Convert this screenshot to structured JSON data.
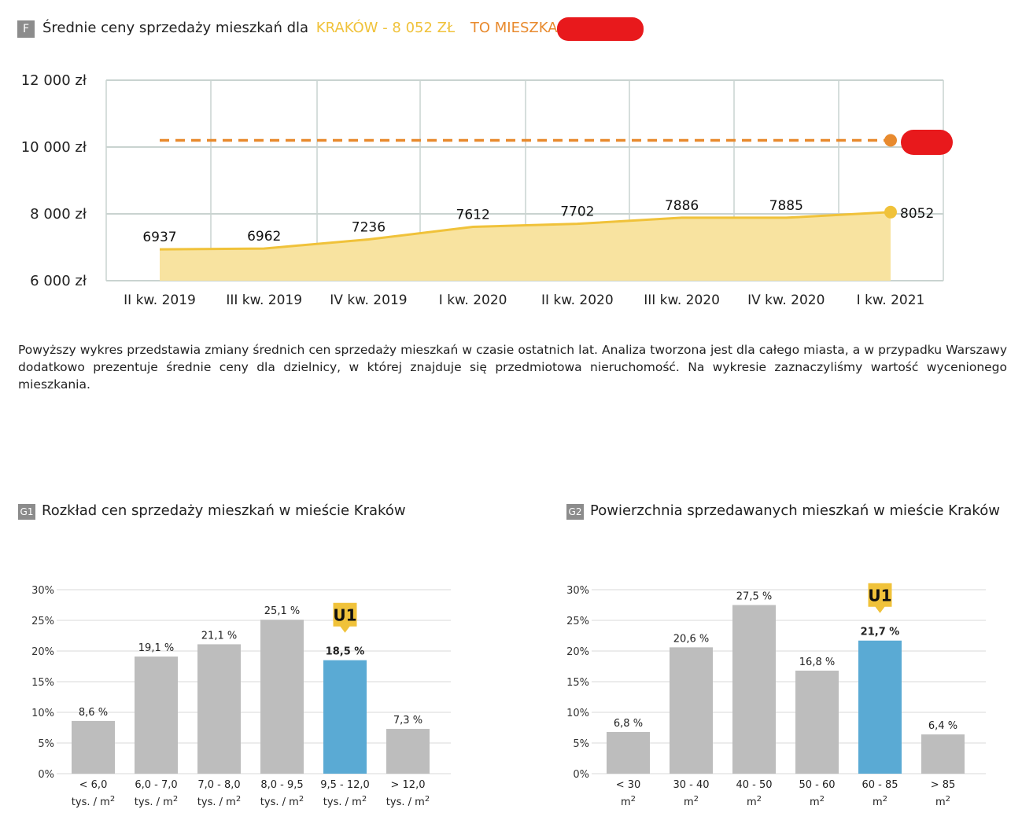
{
  "header_f": {
    "badge": "F",
    "title": "Średnie ceny sprzedaży mieszkań dla",
    "city_label": "KRAKÓW - 8 052 ZŁ",
    "flat_label": "TO MIESZKANIE"
  },
  "description": "Powyższy wykres przedstawia zmiany średnich cen sprzedaży mieszkań w czasie ostatnich lat. Analiza tworzona jest dla całego miasta, a w przypadku Warszawy dodatkowo prezentuje średnie ceny dla dzielnicy, w której znajduje się przedmiotowa nieruchomość. Na wykresie zaznaczyliśmy wartość wycenionego mieszkania.",
  "header_g1": {
    "badge": "G1",
    "title": "Rozkład cen sprzedaży mieszkań w mieście Kraków"
  },
  "header_g2": {
    "badge": "G2",
    "title": "Powierzchnia sprzedawanych mieszkań w mieście Kraków"
  },
  "colors": {
    "city": "#f0c23a",
    "city_fill": "#f8e3a0",
    "flat": "#e88a2e",
    "bar": "#bdbdbd",
    "highlight": "#5aaad4",
    "marker": "#f0c23a",
    "grid": "#c9d3d0"
  },
  "chart_data": [
    {
      "id": "F",
      "type": "area",
      "title": "Średnie ceny sprzedaży mieszkań dla KRAKÓW - 8 052 ZŁ",
      "categories": [
        "II kw. 2019",
        "III kw. 2019",
        "IV kw. 2019",
        "I kw. 2020",
        "II kw. 2020",
        "III kw. 2020",
        "IV kw. 2020",
        "I kw. 2021"
      ],
      "series": [
        {
          "name": "KRAKÓW - 8 052 ZŁ",
          "values": [
            6937,
            6962,
            7236,
            7612,
            7702,
            7886,
            7885,
            8052
          ],
          "labels": [
            "6937",
            "6962",
            "7236",
            "7612",
            "7702",
            "7886",
            "7885",
            "8052"
          ]
        },
        {
          "name": "TO MIESZKANIE",
          "style": "dashed",
          "value": 10200
        }
      ],
      "ylim": [
        6000,
        12000
      ],
      "yticks": [
        6000,
        8000,
        10000,
        12000
      ],
      "ytick_labels": [
        "6 000 zł",
        "8 000 zł",
        "10 000 zł",
        "12 000 zł"
      ],
      "grid": true
    },
    {
      "id": "G1",
      "type": "bar",
      "title": "Rozkład cen sprzedaży mieszkań w mieście Kraków",
      "categories": [
        "< 6,0",
        "6,0 - 7,0",
        "7,0 - 8,0",
        "8,0 - 9,5",
        "9,5 - 12,0",
        "> 12,0"
      ],
      "unit_label": "tys. / m",
      "unit_sup": "2",
      "values": [
        8.6,
        19.1,
        21.1,
        25.1,
        18.5,
        7.3
      ],
      "value_labels": [
        "8,6 %",
        "19,1 %",
        "21,1 %",
        "25,1 %",
        "18,5 %",
        "7,3 %"
      ],
      "highlight_index": 4,
      "marker_label": "U1",
      "ylim": [
        0,
        30
      ],
      "yticks": [
        0,
        5,
        10,
        15,
        20,
        25,
        30
      ],
      "ytick_labels": [
        "0%",
        "5%",
        "10%",
        "15%",
        "20%",
        "25%",
        "30%"
      ]
    },
    {
      "id": "G2",
      "type": "bar",
      "title": "Powierzchnia sprzedawanych mieszkań w mieście Kraków",
      "categories": [
        "< 30",
        "30 - 40",
        "40 - 50",
        "50 - 60",
        "60 - 85",
        "> 85"
      ],
      "unit_label": "m",
      "unit_sup": "2",
      "values": [
        6.8,
        20.6,
        27.5,
        16.8,
        21.7,
        6.4
      ],
      "value_labels": [
        "6,8 %",
        "20,6 %",
        "27,5 %",
        "16,8 %",
        "21,7 %",
        "6,4 %"
      ],
      "highlight_index": 4,
      "marker_label": "U1",
      "ylim": [
        0,
        30
      ],
      "yticks": [
        0,
        5,
        10,
        15,
        20,
        25,
        30
      ],
      "ytick_labels": [
        "0%",
        "5%",
        "10%",
        "15%",
        "20%",
        "25%",
        "30%"
      ]
    }
  ]
}
